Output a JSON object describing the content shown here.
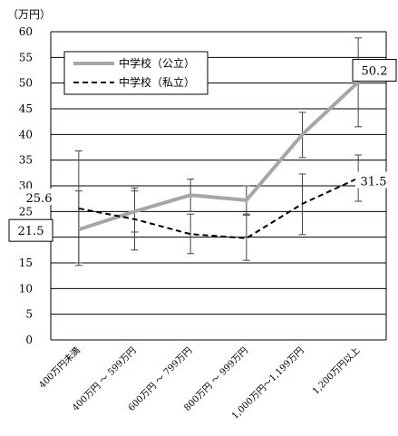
{
  "chart_data": {
    "type": "line",
    "unit_label": "（万円）",
    "categories": [
      "400万円未満",
      "400万円 ～ 599万円",
      "600万円 ～ 799万円",
      "800万円 ～ 999万円",
      "1,000万円～1,199万円",
      "1,200万円以上"
    ],
    "ylim": [
      0,
      60
    ],
    "yticks": [
      0,
      5,
      10,
      15,
      20,
      25,
      30,
      35,
      40,
      45,
      50,
      55,
      60
    ],
    "grid": true,
    "legend_position": "top-left",
    "series": [
      {
        "name": "中学校（公立）",
        "color": "#a6a6a6",
        "style": "solid",
        "values": [
          21.5,
          25.0,
          28.2,
          27.2,
          40.0,
          50.2
        ],
        "error_low": [
          14.5,
          21.0,
          25.0,
          24.3,
          35.5,
          41.5
        ],
        "error_high": [
          29.0,
          29.0,
          31.3,
          30.0,
          44.3,
          58.8
        ]
      },
      {
        "name": "中学校（私立）",
        "color": "#000000",
        "style": "dashed",
        "values": [
          25.6,
          23.5,
          20.6,
          19.8,
          26.5,
          31.5
        ],
        "error_low": [
          15.0,
          17.5,
          16.8,
          15.5,
          20.5,
          27.0
        ],
        "error_high": [
          36.8,
          29.6,
          24.5,
          24.5,
          32.3,
          36.0
        ]
      }
    ],
    "callouts": [
      {
        "text": "21.5",
        "series": 0,
        "index": 0,
        "boxed": true
      },
      {
        "text": "25.6",
        "series": 1,
        "index": 0,
        "boxed": false
      },
      {
        "text": "50.2",
        "series": 0,
        "index": 5,
        "boxed": true
      },
      {
        "text": "31.5",
        "series": 1,
        "index": 5,
        "boxed": false
      }
    ]
  }
}
